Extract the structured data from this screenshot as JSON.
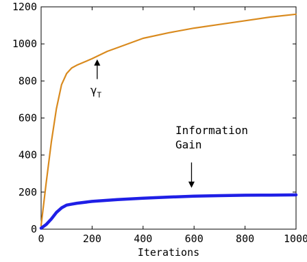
{
  "chart_data": {
    "type": "line",
    "title": "",
    "xlabel": "Iterations",
    "ylabel": "",
    "xlim": [
      0,
      1000
    ],
    "ylim": [
      0,
      1200
    ],
    "x_ticks": [
      0,
      200,
      400,
      600,
      800,
      1000
    ],
    "y_ticks": [
      0,
      200,
      400,
      600,
      800,
      1000,
      1200
    ],
    "grid": false,
    "legend": "none",
    "series": [
      {
        "color": "#d98a1e",
        "x": [
          0,
          20,
          40,
          60,
          80,
          100,
          120,
          140,
          200,
          260,
          300,
          400,
          500,
          600,
          700,
          800,
          900,
          1000
        ],
        "y": [
          20,
          250,
          470,
          650,
          780,
          840,
          870,
          885,
          920,
          960,
          980,
          1030,
          1060,
          1085,
          1105,
          1125,
          1145,
          1160
        ]
      },
      {
        "color": "#1f1fe6",
        "x": [
          0,
          20,
          40,
          60,
          80,
          100,
          120,
          140,
          200,
          300,
          400,
          500,
          600,
          700,
          800,
          900,
          1000
        ],
        "y": [
          5,
          25,
          55,
          90,
          115,
          130,
          135,
          140,
          150,
          160,
          167,
          173,
          178,
          181,
          183,
          184,
          185
        ]
      }
    ],
    "annotations": [
      {
        "text_main": "γ",
        "text_sub": "T",
        "arrow_from": [
          220,
          810
        ],
        "arrow_to": [
          220,
          910
        ]
      },
      {
        "text_lines": [
          "Information",
          "Gain"
        ],
        "arrow_from": [
          590,
          360
        ],
        "arrow_to": [
          590,
          230
        ]
      }
    ]
  }
}
